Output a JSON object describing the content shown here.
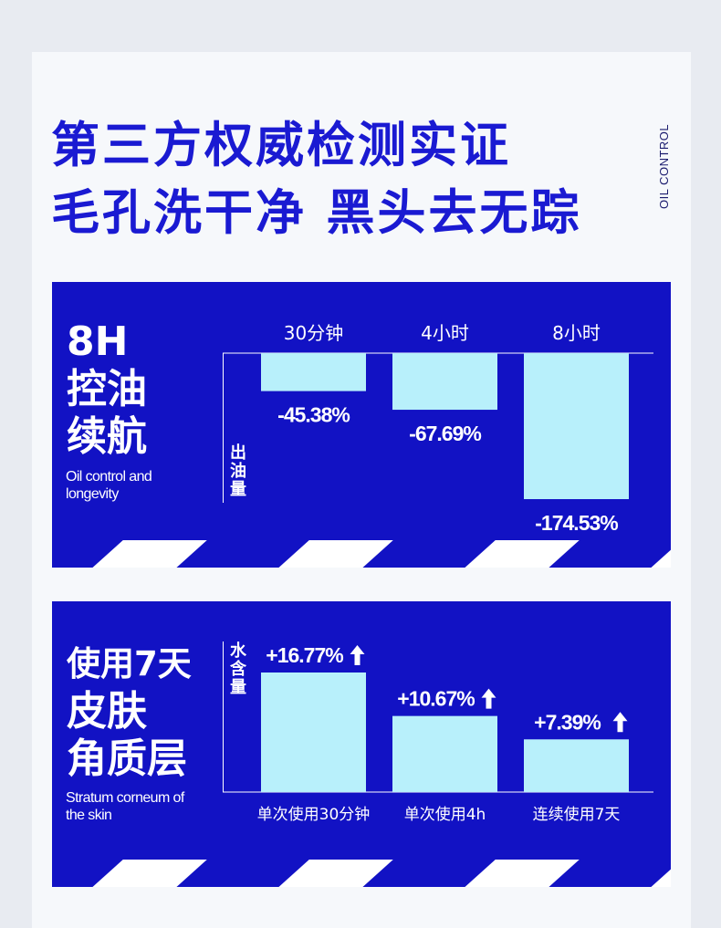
{
  "headline": {
    "line1": "第三方权威检测实证",
    "line2": "毛孔洗干净 黑头去无踪"
  },
  "side_label": "OIL CONTROL",
  "colors": {
    "page_bg": "#e8ebf1",
    "card_bg": "#f6f8fb",
    "brand_blue": "#1a1ad2",
    "panel_blue": "#1212c4",
    "bar_fill": "#b8f0fb",
    "white": "#ffffff"
  },
  "panel1": {
    "title_lines": [
      "8H",
      "控油",
      "续航"
    ],
    "subtitle": "Oil control and longevity",
    "axis_label": "出油量",
    "arrow_icon": ""
  },
  "panel2": {
    "title_lines": [
      "使用7天",
      "皮肤",
      "角质层"
    ],
    "subtitle": "Stratum corneum of the skin",
    "axis_label": "水含量",
    "arrow_icon": "up-arrow-icon"
  },
  "chart_data": [
    {
      "type": "bar",
      "categories": [
        "30分钟",
        "4小时",
        "8小时"
      ],
      "values": [
        -45.38,
        -67.69,
        -174.53
      ],
      "value_labels": [
        "-45.38%",
        "-67.69%",
        "-174.53%"
      ],
      "ylabel": "出油量",
      "ylim": [
        -200,
        0
      ],
      "category_axis": "top",
      "grid": false
    },
    {
      "type": "bar",
      "categories": [
        "单次使用30分钟",
        "单次使用4h",
        "连续使用7天"
      ],
      "values": [
        16.77,
        10.67,
        7.39
      ],
      "value_labels": [
        "+16.77%",
        "+10.67%",
        "+7.39%"
      ],
      "ylabel": "水含量",
      "ylim": [
        0,
        25
      ],
      "category_axis": "bottom",
      "grid": false
    }
  ]
}
